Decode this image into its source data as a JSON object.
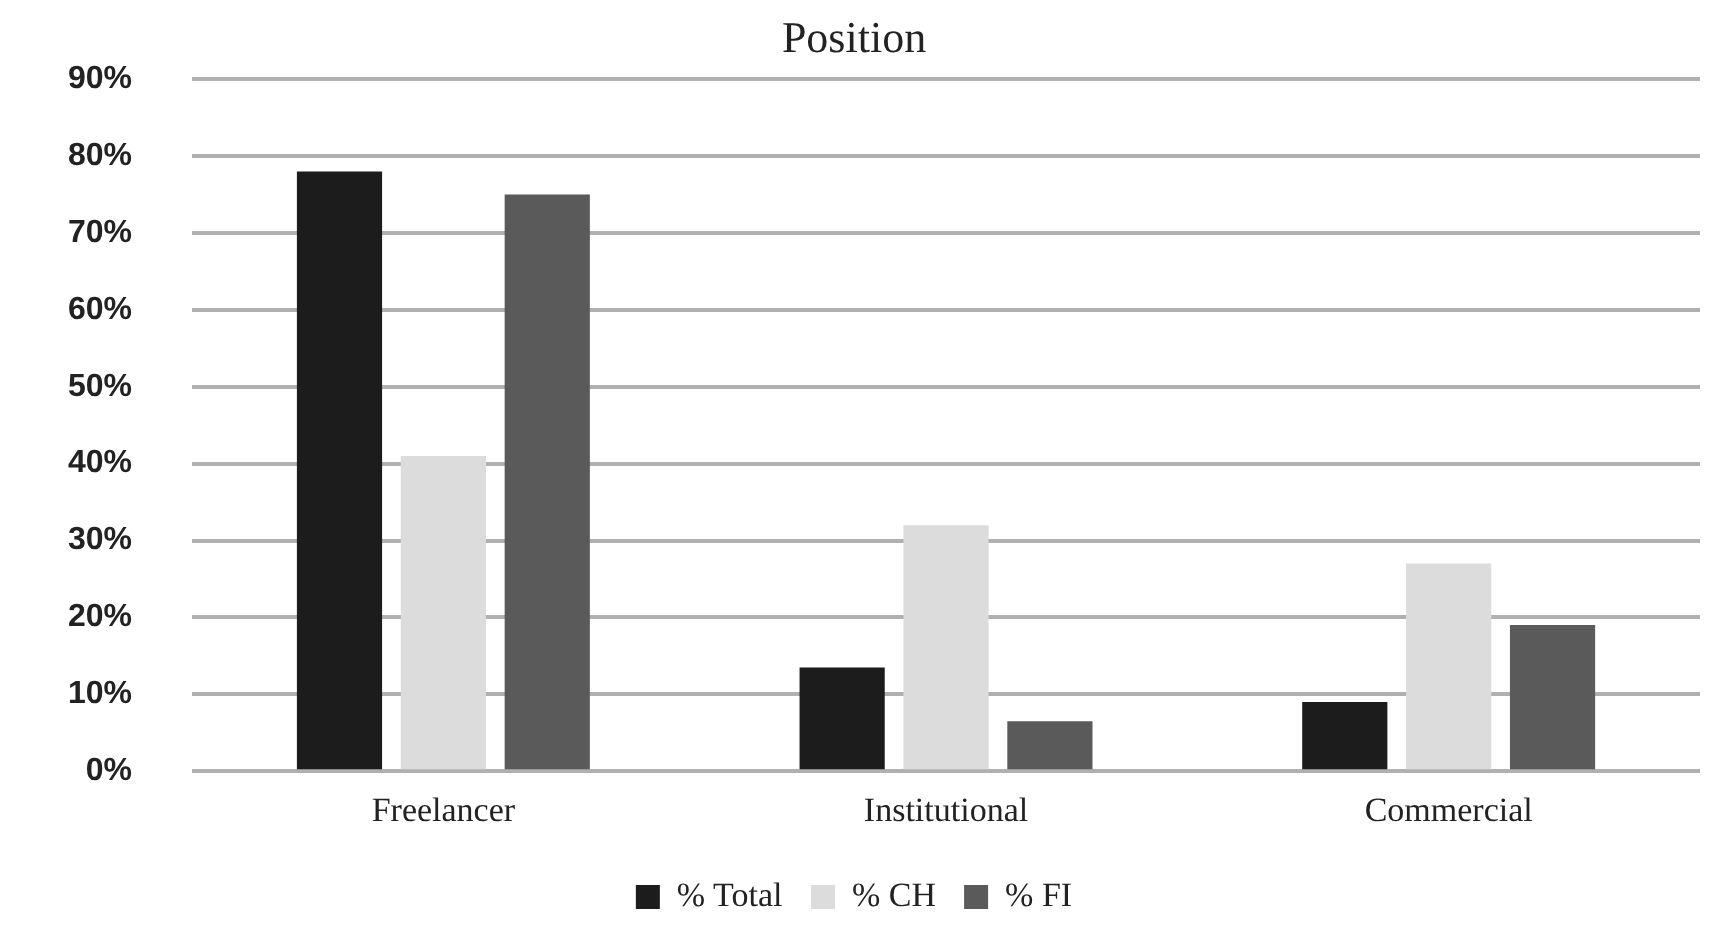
{
  "chart_data": {
    "type": "bar",
    "title": "Position",
    "categories": [
      "Freelancer",
      "Institutional",
      "Commercial"
    ],
    "series": [
      {
        "name": "% Total",
        "color": "#1c1c1c",
        "values": [
          78,
          13.5,
          9
        ]
      },
      {
        "name": "% CH",
        "color": "#dcdcdc",
        "values": [
          41,
          32,
          27
        ]
      },
      {
        "name": "% FI",
        "color": "#5a5a5a",
        "values": [
          75,
          6.5,
          19
        ]
      }
    ],
    "ylim": [
      0,
      90
    ],
    "yticks": [
      {
        "value": 0,
        "label": "0%"
      },
      {
        "value": 10,
        "label": "10%"
      },
      {
        "value": 20,
        "label": "20%"
      },
      {
        "value": 30,
        "label": "30%"
      },
      {
        "value": 40,
        "label": "40%"
      },
      {
        "value": 50,
        "label": "50%"
      },
      {
        "value": 60,
        "label": "60%"
      },
      {
        "value": 70,
        "label": "70%"
      },
      {
        "value": 80,
        "label": "80%"
      },
      {
        "value": 90,
        "label": "90%"
      }
    ],
    "grid": "y",
    "legend": "bottom"
  }
}
